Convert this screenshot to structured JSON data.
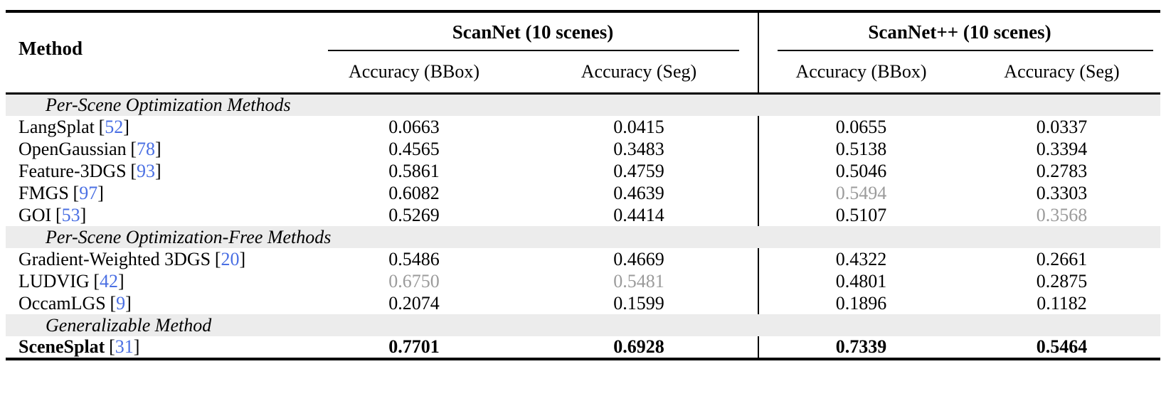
{
  "colors": {
    "citation_blue": "#4a6fe3",
    "second_best_gray": "#9b9b9b",
    "section_band_gray": "#ececec",
    "rule_black": "#000000"
  },
  "table": {
    "bracket_open": "[",
    "bracket_close": "]",
    "header": {
      "method_label": "Method",
      "group1_label": "ScanNet (10 scenes)",
      "group2_label": "ScanNet++ (10 scenes)",
      "sub1": "Accuracy (BBox)",
      "sub2": "Accuracy (Seg)",
      "sub3": "Accuracy (BBox)",
      "sub4": "Accuracy (Seg)"
    },
    "sections": [
      {
        "label": "Per-Scene Optimization Methods"
      },
      {
        "label": "Per-Scene Optimization-Free Methods"
      },
      {
        "label": "Generalizable Method"
      }
    ],
    "rows": [
      {
        "name": "LangSplat",
        "cite": "52",
        "style": "normal",
        "values": [
          "0.0663",
          "0.0415",
          "0.0655",
          "0.0337"
        ],
        "emph": [
          "normal",
          "normal",
          "normal",
          "normal"
        ]
      },
      {
        "name": "OpenGaussian",
        "cite": "78",
        "style": "normal",
        "values": [
          "0.4565",
          "0.3483",
          "0.5138",
          "0.3394"
        ],
        "emph": [
          "normal",
          "normal",
          "normal",
          "normal"
        ]
      },
      {
        "name": "Feature-3DGS",
        "cite": "93",
        "style": "normal",
        "values": [
          "0.5861",
          "0.4759",
          "0.5046",
          "0.2783"
        ],
        "emph": [
          "normal",
          "normal",
          "normal",
          "normal"
        ]
      },
      {
        "name": "FMGS",
        "cite": "97",
        "style": "normal",
        "values": [
          "0.6082",
          "0.4639",
          "0.5494",
          "0.3303"
        ],
        "emph": [
          "normal",
          "normal",
          "second",
          "normal"
        ]
      },
      {
        "name": "GOI",
        "cite": "53",
        "style": "normal",
        "values": [
          "0.5269",
          "0.4414",
          "0.5107",
          "0.3568"
        ],
        "emph": [
          "normal",
          "normal",
          "normal",
          "second"
        ]
      },
      {
        "name": "Gradient-Weighted 3DGS",
        "cite": "20",
        "style": "normal",
        "values": [
          "0.5486",
          "0.4669",
          "0.4322",
          "0.2661"
        ],
        "emph": [
          "normal",
          "normal",
          "normal",
          "normal"
        ]
      },
      {
        "name": "LUDVIG",
        "cite": "42",
        "style": "normal",
        "values": [
          "0.6750",
          "0.5481",
          "0.4801",
          "0.2875"
        ],
        "emph": [
          "second",
          "second",
          "normal",
          "normal"
        ]
      },
      {
        "name": "OccamLGS",
        "cite": "9",
        "style": "normal",
        "values": [
          "0.2074",
          "0.1599",
          "0.1896",
          "0.1182"
        ],
        "emph": [
          "normal",
          "normal",
          "normal",
          "normal"
        ]
      },
      {
        "name": "SceneSplat",
        "cite": "31",
        "style": "best",
        "values": [
          "0.7701",
          "0.6928",
          "0.7339",
          "0.5464"
        ],
        "emph": [
          "best",
          "best",
          "best",
          "best"
        ]
      }
    ]
  }
}
